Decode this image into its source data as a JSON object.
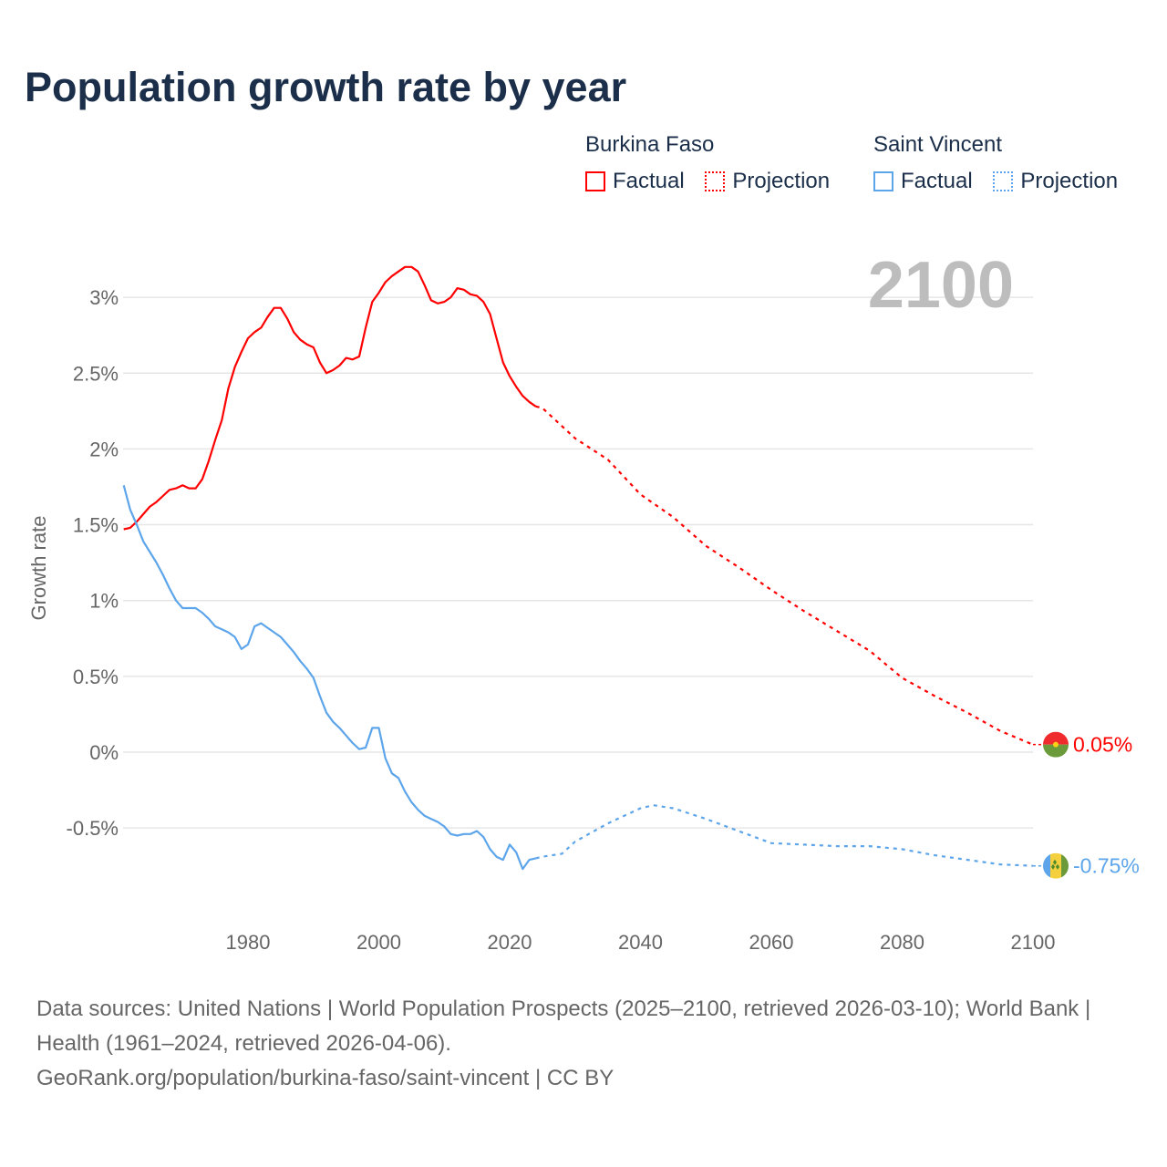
{
  "title": "Population growth rate by year",
  "legend": {
    "groups": [
      {
        "name": "Burkina Faso",
        "color": "#ff0000",
        "factual": "Factual",
        "projection": "Projection"
      },
      {
        "name": "Saint Vincent",
        "color": "#5da5ea",
        "factual": "Factual",
        "projection": "Projection"
      }
    ]
  },
  "current_year": "2100",
  "footer": {
    "sources": "Data sources: United Nations | World Population Prospects (2025–2100, retrieved 2026-03-10); World Bank | Health (1961–2024, retrieved 2026-04-06).",
    "link": "GeoRank.org/population/burkina-faso/saint-vincent | CC BY"
  },
  "chart_data": {
    "type": "line",
    "title": "Population growth rate by year",
    "xlabel": "",
    "ylabel": "Growth rate",
    "xlim": [
      1961,
      2100
    ],
    "ylim": [
      -1.0,
      3.3
    ],
    "x_ticks": [
      1980,
      2000,
      2020,
      2040,
      2060,
      2080,
      2100
    ],
    "y_ticks": [
      -0.5,
      0,
      0.5,
      1,
      1.5,
      2,
      2.5,
      3
    ],
    "y_tick_labels": [
      "-0.5%",
      "0%",
      "0.5%",
      "1%",
      "1.5%",
      "2%",
      "2.5%",
      "3%"
    ],
    "grid": true,
    "series": [
      {
        "name": "Burkina Faso",
        "color": "#ff0000",
        "end_label": "0.05%",
        "factual": {
          "x": [
            1961,
            1962,
            1963,
            1964,
            1965,
            1966,
            1967,
            1968,
            1969,
            1970,
            1971,
            1972,
            1973,
            1974,
            1975,
            1976,
            1977,
            1978,
            1979,
            1980,
            1981,
            1982,
            1983,
            1984,
            1985,
            1986,
            1987,
            1988,
            1989,
            1990,
            1991,
            1992,
            1993,
            1994,
            1995,
            1996,
            1997,
            1998,
            1999,
            2000,
            2001,
            2002,
            2003,
            2004,
            2005,
            2006,
            2007,
            2008,
            2009,
            2010,
            2011,
            2012,
            2013,
            2014,
            2015,
            2016,
            2017,
            2018,
            2019,
            2020,
            2021,
            2022,
            2023,
            2024
          ],
          "y": [
            1.47,
            1.48,
            1.52,
            1.57,
            1.62,
            1.65,
            1.69,
            1.73,
            1.74,
            1.76,
            1.74,
            1.74,
            1.8,
            1.92,
            2.06,
            2.19,
            2.4,
            2.54,
            2.64,
            2.73,
            2.77,
            2.8,
            2.87,
            2.93,
            2.93,
            2.86,
            2.77,
            2.72,
            2.69,
            2.67,
            2.57,
            2.5,
            2.52,
            2.55,
            2.6,
            2.59,
            2.61,
            2.8,
            2.97,
            3.03,
            3.1,
            3.14,
            3.17,
            3.2,
            3.2,
            3.17,
            3.08,
            2.98,
            2.96,
            2.97,
            3.0,
            3.06,
            3.05,
            3.02,
            3.01,
            2.97,
            2.89,
            2.73,
            2.57,
            2.48,
            2.41,
            2.35,
            2.31,
            2.28
          ]
        },
        "projection": {
          "x": [
            2024,
            2025,
            2030,
            2035,
            2040,
            2045,
            2050,
            2055,
            2060,
            2065,
            2070,
            2075,
            2080,
            2085,
            2090,
            2095,
            2100
          ],
          "y": [
            2.28,
            2.27,
            2.07,
            1.93,
            1.7,
            1.55,
            1.36,
            1.22,
            1.07,
            0.93,
            0.8,
            0.67,
            0.49,
            0.37,
            0.26,
            0.14,
            0.05
          ]
        }
      },
      {
        "name": "Saint Vincent",
        "color": "#5da5ea",
        "end_label": "-0.75%",
        "factual": {
          "x": [
            1961,
            1962,
            1963,
            1964,
            1965,
            1966,
            1967,
            1968,
            1969,
            1970,
            1971,
            1972,
            1973,
            1974,
            1975,
            1976,
            1977,
            1978,
            1979,
            1980,
            1981,
            1982,
            1983,
            1984,
            1985,
            1986,
            1987,
            1988,
            1989,
            1990,
            1991,
            1992,
            1993,
            1994,
            1995,
            1996,
            1997,
            1998,
            1999,
            2000,
            2001,
            2002,
            2003,
            2004,
            2005,
            2006,
            2007,
            2008,
            2009,
            2010,
            2011,
            2012,
            2013,
            2014,
            2015,
            2016,
            2017,
            2018,
            2019,
            2020,
            2021,
            2022,
            2023,
            2024
          ],
          "y": [
            1.76,
            1.6,
            1.5,
            1.39,
            1.32,
            1.25,
            1.17,
            1.08,
            1.0,
            0.95,
            0.95,
            0.95,
            0.92,
            0.88,
            0.83,
            0.81,
            0.79,
            0.76,
            0.68,
            0.71,
            0.83,
            0.85,
            0.82,
            0.79,
            0.76,
            0.71,
            0.66,
            0.6,
            0.55,
            0.49,
            0.37,
            0.26,
            0.2,
            0.16,
            0.11,
            0.06,
            0.02,
            0.03,
            0.16,
            0.16,
            -0.04,
            -0.14,
            -0.17,
            -0.26,
            -0.33,
            -0.38,
            -0.42,
            -0.44,
            -0.46,
            -0.49,
            -0.54,
            -0.55,
            -0.54,
            -0.54,
            -0.52,
            -0.56,
            -0.64,
            -0.69,
            -0.71,
            -0.61,
            -0.66,
            -0.77,
            -0.71,
            -0.7
          ]
        },
        "projection": {
          "x": [
            2024,
            2025,
            2028,
            2030,
            2035,
            2040,
            2042,
            2045,
            2050,
            2055,
            2060,
            2065,
            2070,
            2075,
            2080,
            2085,
            2090,
            2095,
            2100
          ],
          "y": [
            -0.7,
            -0.69,
            -0.67,
            -0.59,
            -0.47,
            -0.37,
            -0.35,
            -0.37,
            -0.44,
            -0.52,
            -0.6,
            -0.61,
            -0.62,
            -0.62,
            -0.64,
            -0.68,
            -0.71,
            -0.74,
            -0.75
          ]
        }
      }
    ]
  }
}
